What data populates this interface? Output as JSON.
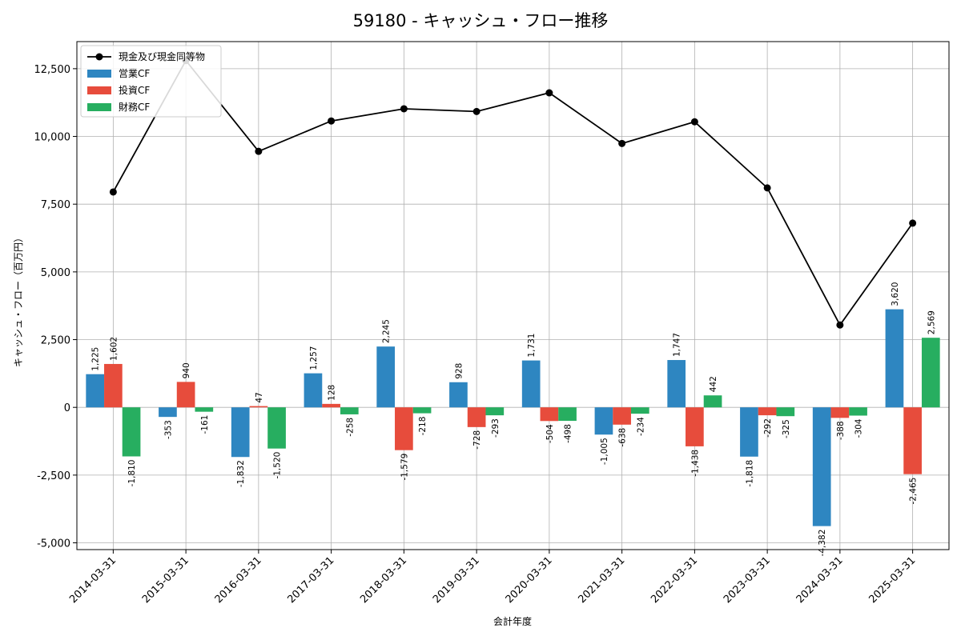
{
  "chart_data": {
    "type": "bar",
    "title": "59180 - キャッシュ・フロー推移",
    "xlabel": "会計年度",
    "ylabel": "キャッシュ・フロー（百万円）",
    "ylim": [
      -5250,
      13500
    ],
    "yticks": [
      -5000,
      -2500,
      0,
      2500,
      5000,
      7500,
      10000,
      12500
    ],
    "ytick_labels": [
      "-5,000",
      "-2,500",
      "0",
      "2,500",
      "5,000",
      "7,500",
      "10,000",
      "12,500"
    ],
    "grid": true,
    "legend_position": "top-left",
    "categories": [
      "2014-03-31",
      "2015-03-31",
      "2016-03-31",
      "2017-03-31",
      "2018-03-31",
      "2019-03-31",
      "2020-03-31",
      "2021-03-31",
      "2022-03-31",
      "2023-03-31",
      "2024-03-31",
      "2025-03-31"
    ],
    "line_series": {
      "name": "現金及び現金同等物",
      "color": "#000000",
      "values": [
        7950,
        12800,
        9450,
        10570,
        11020,
        10920,
        11610,
        9740,
        10540,
        8100,
        3040,
        6800
      ]
    },
    "series": [
      {
        "name": "営業CF",
        "color": "#2E86C1",
        "values": [
          1225,
          -353,
          -1832,
          1257,
          2245,
          928,
          1731,
          -1005,
          1747,
          -1818,
          -4382,
          3620
        ],
        "labels": [
          "1,225",
          "-353",
          "-1,832",
          "1,257",
          "2,245",
          "928",
          "1,731",
          "-1,005",
          "1,747",
          "-1,818",
          "-4,382",
          "3,620"
        ]
      },
      {
        "name": "投資CF",
        "color": "#E74C3C",
        "values": [
          1602,
          940,
          47,
          128,
          -1579,
          -728,
          -504,
          -638,
          -1438,
          -292,
          -388,
          -2465
        ],
        "labels": [
          "1,602",
          "940",
          "47",
          "128",
          "-1,579",
          "-728",
          "-504",
          "-638",
          "-1,438",
          "-292",
          "-388",
          "-2,465"
        ]
      },
      {
        "name": "財務CF",
        "color": "#27AE60",
        "values": [
          -1810,
          -161,
          -1520,
          -258,
          -218,
          -293,
          -498,
          -234,
          442,
          -325,
          -304,
          2569
        ],
        "labels": [
          "-1,810",
          "-161",
          "-1,520",
          "-258",
          "-218",
          "-293",
          "-498",
          "-234",
          "442",
          "-325",
          "-304",
          "2,569"
        ]
      }
    ]
  }
}
